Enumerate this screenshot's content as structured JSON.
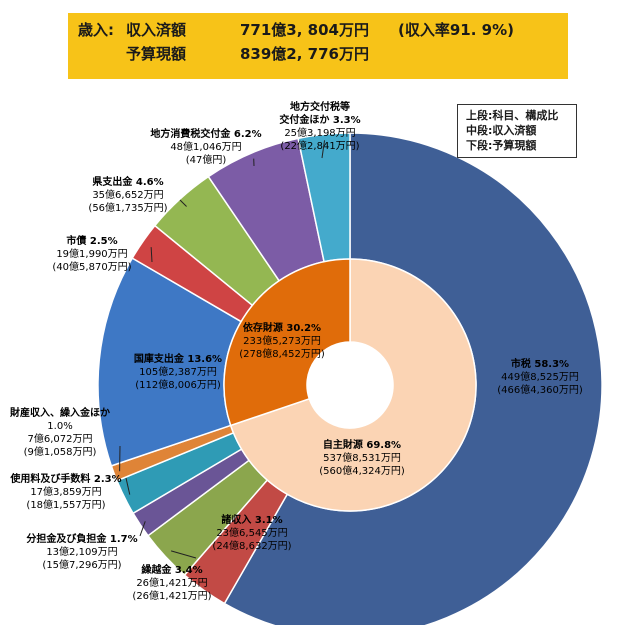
{
  "banner": {
    "row1_head": "歳入:",
    "row1_title": "収入済額",
    "row1_amount": "771億3, 804万円",
    "row1_rate": "(収入率91. 9%)",
    "row2_title": "予算現額",
    "row2_amount": "839億2, 776万円"
  },
  "legend_note": [
    "上段:科目、構成比",
    "中段:収入済額",
    "下段:予算現額"
  ],
  "chart_data": {
    "type": "pie",
    "subtype": "two-level donut",
    "colors": {
      "市税": "#3f5f96",
      "諸収入": "#c24a45",
      "繰越金": "#8ba64d",
      "分担金及び負担金": "#6a5596",
      "使用料及び手数料": "#2f9bb5",
      "財産収入、繰入金ほか": "#df8437",
      "国庫支出金": "#3e78c5",
      "市債": "#cf4444",
      "県支出金": "#94b752",
      "地方消費税交付金": "#7c5ca6",
      "地方交付税等交付金ほか": "#44aacc",
      "自主財源": "#fbd4b4",
      "依存財源": "#e06c0a"
    },
    "outer": [
      {
        "name": "市税",
        "percent": "58.3%",
        "value": 58.3,
        "received": "449億8,525万円",
        "budget": "(466億4,360万円)"
      },
      {
        "name": "諸収入",
        "percent": "3.1%",
        "value": 3.1,
        "received": "23億6,545万円",
        "budget": "(24億8,632万円)"
      },
      {
        "name": "繰越金",
        "percent": "3.4%",
        "value": 3.4,
        "received": "26億1,421万円",
        "budget": "(26億1,421万円)"
      },
      {
        "name": "分担金及び負担金",
        "percent": "1.7%",
        "value": 1.7,
        "received": "13億2,109万円",
        "budget": "(15億7,296万円)"
      },
      {
        "name": "使用料及び手数料",
        "percent": "2.3%",
        "value": 2.3,
        "received": "17億3,859万円",
        "budget": "(18億1,557万円)"
      },
      {
        "name": "財産収入、繰入金ほか",
        "percent": "1.0%",
        "value": 1.0,
        "received": "7億6,072万円",
        "budget": "(9億1,058万円)"
      },
      {
        "name": "国庫支出金",
        "percent": "13.6%",
        "value": 13.6,
        "received": "105億2,387万円",
        "budget": "(112億8,006万円)"
      },
      {
        "name": "市債",
        "percent": "2.5%",
        "value": 2.5,
        "received": "19億1,990万円",
        "budget": "(40億5,870万円)"
      },
      {
        "name": "県支出金",
        "percent": "4.6%",
        "value": 4.6,
        "received": "35億6,652万円",
        "budget": "(56億1,735万円)"
      },
      {
        "name": "地方消費税交付金",
        "percent": "6.2%",
        "value": 6.2,
        "received": "48億1,046万円",
        "budget": "(47億円)"
      },
      {
        "name": "地方交付税等交付金ほか",
        "name_lines": [
          "地方交付税等",
          "交付金ほか"
        ],
        "percent": "3.3%",
        "value": 3.3,
        "received": "25億3,198万円",
        "budget": "(22億2,841万円)"
      }
    ],
    "inner": [
      {
        "name": "自主財源",
        "percent": "69.8%",
        "value": 69.8,
        "received": "537億8,531万円",
        "budget": "(560億4,324万円)"
      },
      {
        "name": "依存財源",
        "percent": "30.2%",
        "value": 30.2,
        "received": "233億5,273万円",
        "budget": "(278億8,452万円)"
      }
    ]
  }
}
